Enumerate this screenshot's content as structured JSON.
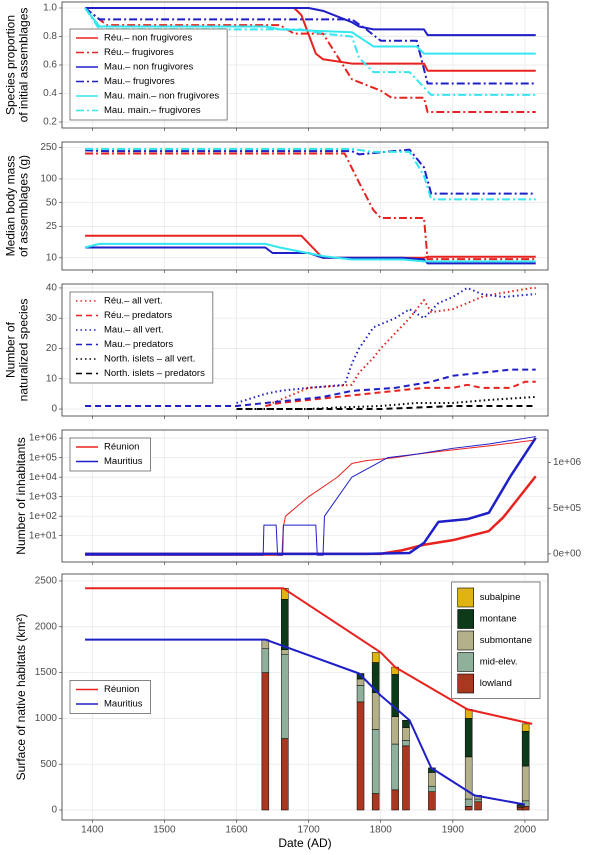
{
  "chart_data": [
    {
      "type": "line",
      "ylabel": [
        "Species proportion",
        "of initial assemblages"
      ],
      "xlim": [
        1358,
        2032
      ],
      "xticks": [
        1400,
        1500,
        1600,
        1700,
        1800,
        1900,
        2000
      ],
      "ylim": [
        0.158,
        1.042
      ],
      "yticks": [
        0.2,
        0.4,
        0.6,
        0.8,
        {
          "value": 1,
          "label": "1.0"
        }
      ],
      "grid": true,
      "legend": "bottom-left",
      "series": [
        {
          "name": "Réu.– non frugivores",
          "color": "#e8231f",
          "linetype": "solid",
          "x": [
            1390,
            1680,
            1690,
            1710,
            1720,
            1760,
            1860,
            1865,
            2015
          ],
          "values": [
            1.0,
            1.0,
            0.95,
            0.68,
            0.64,
            0.61,
            0.61,
            0.56,
            0.56
          ]
        },
        {
          "name": "Réu.– frugivores",
          "color": "#e8231f",
          "linetype": "dashdot",
          "x": [
            1390,
            1420,
            1660,
            1680,
            1720,
            1760,
            1800,
            1815,
            1860,
            1865,
            2015
          ],
          "values": [
            1.0,
            0.88,
            0.88,
            0.82,
            0.82,
            0.5,
            0.42,
            0.37,
            0.37,
            0.27,
            0.27
          ]
        },
        {
          "name": "Mau.– non frugivores",
          "color": "#1f1fc8",
          "linetype": "solid",
          "x": [
            1390,
            1700,
            1720,
            1760,
            1770,
            1790,
            1860,
            1865,
            2015
          ],
          "values": [
            1.0,
            1.0,
            0.98,
            0.9,
            0.87,
            0.85,
            0.85,
            0.81,
            0.81
          ]
        },
        {
          "name": "Mau.– frugivores",
          "color": "#1f1fc8",
          "linetype": "dashdot",
          "x": [
            1390,
            1410,
            1760,
            1780,
            1800,
            1850,
            1865,
            2015
          ],
          "values": [
            1.0,
            0.92,
            0.92,
            0.85,
            0.77,
            0.77,
            0.47,
            0.47
          ]
        },
        {
          "name": "Mau. main.– non frugivores",
          "color": "#33e6f0",
          "linetype": "solid",
          "x": [
            1390,
            1410,
            1640,
            1660,
            1760,
            1790,
            1850,
            1860,
            2015
          ],
          "values": [
            1.0,
            0.87,
            0.87,
            0.85,
            0.83,
            0.73,
            0.73,
            0.68,
            0.68
          ]
        },
        {
          "name": "Mau. main.– frugivores",
          "color": "#33e6f0",
          "linetype": "dashdot",
          "x": [
            1390,
            1410,
            1690,
            1720,
            1760,
            1770,
            1790,
            1840,
            1870,
            2015
          ],
          "values": [
            1.0,
            0.85,
            0.85,
            0.82,
            0.8,
            0.65,
            0.55,
            0.55,
            0.39,
            0.39
          ]
        }
      ]
    },
    {
      "type": "line",
      "ylabel": [
        "Median body mass",
        "of assemblages (g)"
      ],
      "xlim": [
        1358,
        2032
      ],
      "xticks": [
        1400,
        1500,
        1600,
        1700,
        1800,
        1900,
        2000
      ],
      "ylim": [
        7,
        294
      ],
      "ylog": true,
      "yticks": [
        10,
        25,
        50,
        100,
        250
      ],
      "grid": true,
      "series": [
        {
          "name": "Réu.– non frugivores",
          "color": "#e8231f",
          "linetype": "solid",
          "x": [
            1390,
            1690,
            1715,
            1720,
            1860,
            1865,
            2015
          ],
          "values": [
            19,
            19,
            11,
            10,
            10,
            10.3,
            10.3
          ]
        },
        {
          "name": "Réu.– frugivores",
          "color": "#e8231f",
          "linetype": "dashdot",
          "x": [
            1390,
            1750,
            1770,
            1790,
            1800,
            1860,
            1865,
            2015
          ],
          "values": [
            210,
            210,
            90,
            40,
            32,
            32,
            9.6,
            9.6
          ]
        },
        {
          "name": "Mau.– non frugivores",
          "color": "#1f1fc8",
          "linetype": "solid",
          "x": [
            1390,
            1640,
            1650,
            1700,
            1720,
            1830,
            1860,
            1865,
            2015
          ],
          "values": [
            13.5,
            13.5,
            11.5,
            11.5,
            10,
            10,
            9.5,
            8.5,
            8.5
          ]
        },
        {
          "name": "Mau.– frugivores",
          "color": "#1f1fc8",
          "linetype": "dashdot",
          "x": [
            1390,
            1420,
            1760,
            1770,
            1840,
            1860,
            1870,
            2015
          ],
          "values": [
            230,
            225,
            225,
            205,
            235,
            140,
            65,
            65
          ]
        },
        {
          "name": "Mau. main.– non frugivores",
          "color": "#33e6f0",
          "linetype": "solid",
          "x": [
            1390,
            1410,
            1640,
            1660,
            1720,
            1760,
            1830,
            1860,
            2015
          ],
          "values": [
            13.5,
            15,
            15,
            13.5,
            10.5,
            9.5,
            9.5,
            9,
            9
          ]
        },
        {
          "name": "Mau. main.– frugivores",
          "color": "#33e6f0",
          "linetype": "dashdot",
          "x": [
            1390,
            1760,
            1790,
            1840,
            1860,
            1870,
            2015
          ],
          "values": [
            240,
            240,
            220,
            220,
            110,
            55,
            55
          ]
        }
      ]
    },
    {
      "type": "line",
      "ylabel": [
        "Number of",
        "naturalized species"
      ],
      "xlim": [
        1358,
        2032
      ],
      "xticks": [
        1400,
        1500,
        1600,
        1700,
        1800,
        1900,
        2000
      ],
      "ylim": [
        -2.3,
        41.3
      ],
      "yticks": [
        0,
        10,
        20,
        30,
        40
      ],
      "grid": true,
      "legend": "top-left",
      "series": [
        {
          "name": "Réu.– all vert.",
          "color": "#e8231f",
          "linetype": "dotted",
          "x": [
            1650,
            1700,
            1760,
            1770,
            1790,
            1800,
            1820,
            1840,
            1860,
            1870,
            1900,
            1940,
            1960,
            2010,
            2015
          ],
          "values": [
            2,
            7,
            8,
            12,
            17,
            20,
            25,
            30,
            36,
            32,
            33,
            37,
            38,
            40,
            40
          ]
        },
        {
          "name": "Réu.– predators",
          "color": "#e8231f",
          "linetype": "dashed",
          "x": [
            1640,
            1660,
            1700,
            1740,
            1780,
            1820,
            1860,
            1900,
            1920,
            1940,
            1980,
            2000,
            2015
          ],
          "values": [
            1,
            2,
            3,
            4,
            5,
            6,
            7,
            7,
            8,
            7,
            7,
            9,
            9
          ]
        },
        {
          "name": "Mau.– all vert.",
          "color": "#1f1fc8",
          "linetype": "dotted",
          "x": [
            1600,
            1640,
            1660,
            1700,
            1750,
            1760,
            1770,
            1790,
            1820,
            1840,
            1860,
            1880,
            1900,
            1920,
            1940,
            1970,
            2015
          ],
          "values": [
            2,
            5,
            6,
            7,
            8,
            15,
            20,
            27,
            30,
            33,
            30,
            35,
            37,
            40,
            38,
            37,
            38
          ]
        },
        {
          "name": "Mau.– predators",
          "color": "#1f1fc8",
          "linetype": "dashed",
          "x": [
            1390,
            1600,
            1640,
            1680,
            1720,
            1760,
            1820,
            1870,
            1900,
            1940,
            1980,
            2015
          ],
          "values": [
            1,
            1,
            2,
            3,
            4,
            6,
            7,
            9,
            11,
            12,
            13,
            13
          ]
        },
        {
          "name": "North. islets – all vert.",
          "color": "#000000",
          "linetype": "dotted",
          "x": [
            1600,
            1700,
            1740,
            1800,
            1850,
            1900,
            1950,
            2015
          ],
          "values": [
            0,
            0,
            0.5,
            1,
            2,
            2,
            3,
            4
          ]
        },
        {
          "name": "North. islets – predators",
          "color": "#000000",
          "linetype": "dashed",
          "x": [
            1600,
            1800,
            1850,
            1900,
            1950,
            2015
          ],
          "values": [
            0,
            0,
            0.5,
            1,
            1,
            1
          ]
        }
      ]
    },
    {
      "type": "line",
      "ylabel": [
        "Number of inhabitants"
      ],
      "xlim": [
        1358,
        2032
      ],
      "xticks": [
        1400,
        1500,
        1600,
        1700,
        1800,
        1900,
        2000
      ],
      "ylim": [
        0.45,
        2600000
      ],
      "ylog": true,
      "yticks": [
        {
          "value": 10,
          "label": "1e+01"
        },
        {
          "value": 100,
          "label": "1e+02"
        },
        {
          "value": 1000,
          "label": "1e+03"
        },
        {
          "value": 10000,
          "label": "1e+04"
        },
        {
          "value": 100000,
          "label": "1e+05"
        },
        {
          "value": 1000000,
          "label": "1e+06"
        }
      ],
      "y2lim": [
        -89000,
        1356000
      ],
      "y2ticks": [
        {
          "value": 0,
          "label": "0e+00"
        },
        {
          "value": 500000,
          "label": "5e+05"
        },
        {
          "value": 1000000,
          "label": "1e+06"
        }
      ],
      "grid": true,
      "legend": "top-left",
      "series": [
        {
          "name": "Réunion",
          "color": "#e8231f",
          "linetype": "solid",
          "x": [
            1390,
            1663,
            1665,
            1668,
            1700,
            1740,
            1760,
            1780,
            1820,
            1850,
            1900,
            1950,
            2015
          ],
          "values": [
            1,
            1,
            30,
            100,
            1000,
            10000,
            50000,
            70000,
            100000,
            150000,
            250000,
            400000,
            800000
          ]
        },
        {
          "name": "Mauritius",
          "color": "#1f1fc8",
          "linetype": "solid",
          "x": [
            1390,
            1637,
            1638,
            1655,
            1657,
            1664,
            1665,
            1710,
            1712,
            1720,
            1722,
            1760,
            1810,
            1850,
            1900,
            1950,
            2015
          ],
          "values": [
            1,
            1,
            35,
            35,
            1,
            1,
            35,
            35,
            1,
            1,
            100,
            10000,
            100000,
            150000,
            300000,
            500000,
            1200000
          ]
        },
        {
          "name": "Réunion",
          "color": "#e8231f",
          "linetype": "solid",
          "axis": "y2",
          "x": [
            1390,
            1800,
            1830,
            1860,
            1900,
            1950,
            1970,
            2015
          ],
          "values": [
            0,
            0,
            40000,
            100000,
            150000,
            250000,
            400000,
            850000
          ]
        },
        {
          "name": "Mauritius",
          "color": "#1f1fc8",
          "linetype": "solid",
          "axis": "y2",
          "x": [
            1390,
            1780,
            1840,
            1860,
            1880,
            1920,
            1950,
            1980,
            2015
          ],
          "values": [
            0,
            0,
            10000,
            120000,
            350000,
            380000,
            450000,
            850000,
            1270000
          ]
        }
      ]
    },
    {
      "type": "line",
      "ylabel": [
        "Surface of native habitats (km²)"
      ],
      "xlabel": "Date (AD)",
      "xlim": [
        1358,
        2032
      ],
      "xticks": [
        1400,
        1500,
        1600,
        1700,
        1800,
        1900,
        2000
      ],
      "ylim": [
        -109,
        2576
      ],
      "yticks": [
        0,
        500,
        1000,
        1500,
        2000,
        2500
      ],
      "grid": true,
      "legend": "left",
      "series": [
        {
          "name": "Réunion",
          "color": "#e8231f",
          "linetype": "solid",
          "x": [
            1390,
            1665,
            1800,
            1820,
            1920,
            2010
          ],
          "values": [
            2420,
            2420,
            1720,
            1560,
            1100,
            940
          ]
        },
        {
          "name": "Mauritius",
          "color": "#1f1fc8",
          "linetype": "solid",
          "x": [
            1390,
            1640,
            1770,
            1800,
            1840,
            1870,
            1930,
            2000
          ],
          "values": [
            1860,
            1860,
            1490,
            1250,
            980,
            460,
            160,
            60
          ]
        }
      ],
      "bars": {
        "legend": "top-right",
        "x": [
          1640,
          1667,
          1772,
          1793,
          1820,
          1835,
          1871,
          1922,
          1935,
          1994,
          2001
        ],
        "series": [
          {
            "name": "lowland",
            "color": "#a8381f",
            "values": [
              1500,
              780,
              1180,
              180,
              220,
              700,
              200,
              40,
              90,
              30,
              40
            ]
          },
          {
            "name": "mid-elev.",
            "color": "#8fb09a",
            "values": [
              260,
              920,
              180,
              700,
              500,
              60,
              60,
              80,
              30,
              10,
              60
            ]
          },
          {
            "name": "submontane",
            "color": "#b3b08a",
            "values": [
              100,
              50,
              70,
              400,
              300,
              140,
              150,
              460,
              30,
              10,
              380
            ]
          },
          {
            "name": "montane",
            "color": "#0d3b1a",
            "values": [
              0,
              550,
              60,
              330,
              460,
              80,
              50,
              420,
              10,
              10,
              380
            ]
          },
          {
            "name": "subalpine",
            "color": "#e0b313",
            "values": [
              0,
              120,
              0,
              110,
              80,
              0,
              0,
              100,
              0,
              0,
              80
            ]
          }
        ]
      }
    }
  ]
}
